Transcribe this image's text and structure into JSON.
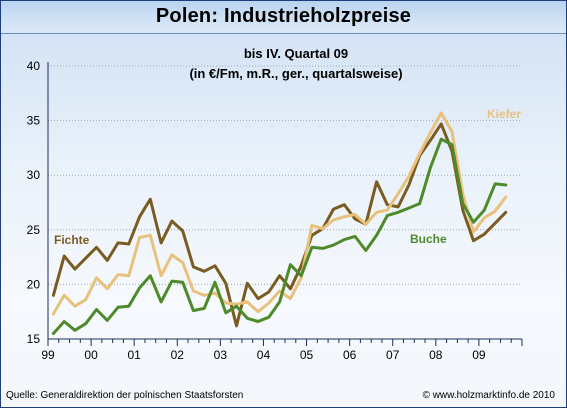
{
  "chart_data": {
    "type": "line",
    "title": "Polen: Industrieholzpreise",
    "subtitle_lines": [
      "bis IV. Quartal 09",
      "(in €/Fm, m.R., ger., quartalsweise)"
    ],
    "xlabel": "",
    "ylabel": "",
    "ylim": [
      15,
      40
    ],
    "y_ticks": [
      "15",
      "20",
      "25",
      "30",
      "35",
      "40"
    ],
    "x_tick_labels": [
      "99",
      "00",
      "01",
      "02",
      "03",
      "04",
      "05",
      "06",
      "07",
      "08",
      "09"
    ],
    "grid": "horizontal",
    "x_unit": "quarter index starting Q1 1999",
    "series": [
      {
        "name": "Fichte",
        "color": "#7a5c22",
        "values": [
          19.0,
          22.6,
          21.4,
          22.4,
          23.4,
          22.2,
          23.8,
          23.7,
          26.2,
          27.8,
          23.8,
          25.8,
          24.9,
          21.6,
          21.2,
          21.7,
          20.1,
          16.2,
          20.1,
          18.7,
          19.3,
          20.8,
          19.6,
          21.7,
          24.5,
          25.1,
          26.9,
          27.3,
          26.0,
          25.5,
          29.4,
          27.3,
          27.1,
          29.1,
          31.8,
          33.2,
          34.7,
          32.2,
          26.8,
          24.0,
          24.6,
          25.6,
          26.6
        ]
      },
      {
        "name": "Kiefer",
        "color": "#e8c27d",
        "values": [
          17.3,
          19.0,
          18.0,
          18.6,
          20.6,
          19.6,
          20.9,
          20.8,
          24.3,
          24.5,
          20.8,
          22.7,
          22.0,
          19.4,
          19.0,
          19.2,
          18.3,
          18.2,
          18.4,
          17.5,
          18.3,
          19.4,
          18.7,
          20.6,
          25.4,
          25.1,
          25.9,
          26.2,
          26.4,
          25.5,
          26.6,
          26.8,
          28.3,
          29.9,
          32.0,
          33.9,
          35.7,
          34.0,
          28.3,
          24.8,
          26.1,
          26.7,
          28.0
        ]
      },
      {
        "name": "Buche",
        "color": "#4f8a2a",
        "values": [
          15.5,
          16.6,
          15.8,
          16.4,
          17.7,
          16.7,
          17.9,
          18.0,
          19.7,
          20.8,
          18.4,
          20.3,
          20.2,
          17.6,
          17.8,
          20.2,
          17.4,
          18.0,
          16.9,
          16.6,
          17.0,
          18.4,
          21.8,
          20.8,
          23.4,
          23.3,
          23.6,
          24.1,
          24.4,
          23.1,
          24.5,
          26.3,
          26.6,
          27.0,
          27.4,
          30.7,
          33.3,
          32.8,
          27.4,
          25.7,
          26.8,
          29.2,
          29.1
        ]
      }
    ],
    "series_label_text": [
      "Fichte",
      "Kiefer",
      "Buche"
    ]
  },
  "footer": {
    "source": "Quelle: Generaldirektion der polnischen Staatsforsten",
    "copyright": "© www.holzmarktinfo.de 2010"
  }
}
